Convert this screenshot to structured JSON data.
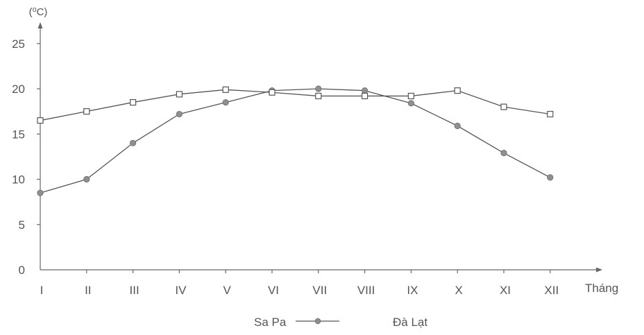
{
  "chart_data": {
    "type": "line",
    "title": "",
    "ylabel": "(⁰C)",
    "xlabel": "Tháng",
    "categories": [
      "I",
      "II",
      "III",
      "IV",
      "V",
      "VI",
      "VII",
      "VIII",
      "IX",
      "X",
      "XI",
      "XII"
    ],
    "yticks": [
      0,
      5,
      10,
      15,
      20,
      25
    ],
    "ylim": [
      0,
      26
    ],
    "grid": false,
    "legend_position": "bottom",
    "series": [
      {
        "name": "Sa Pa",
        "marker": "filled-circle",
        "values": [
          8.5,
          10.0,
          14.0,
          17.2,
          18.5,
          19.8,
          20.0,
          19.8,
          18.4,
          15.9,
          12.9,
          10.2
        ]
      },
      {
        "name": "Đà Lạt",
        "marker": "hollow-square",
        "values": [
          16.5,
          17.5,
          18.5,
          19.4,
          19.9,
          19.6,
          19.2,
          19.2,
          19.2,
          19.8,
          18.0,
          17.2
        ]
      }
    ],
    "colors": {
      "axis": "#666666",
      "line": "#555555",
      "marker_fill_filled": "#8f8f8f",
      "marker_fill_hollow": "#ffffff"
    }
  }
}
